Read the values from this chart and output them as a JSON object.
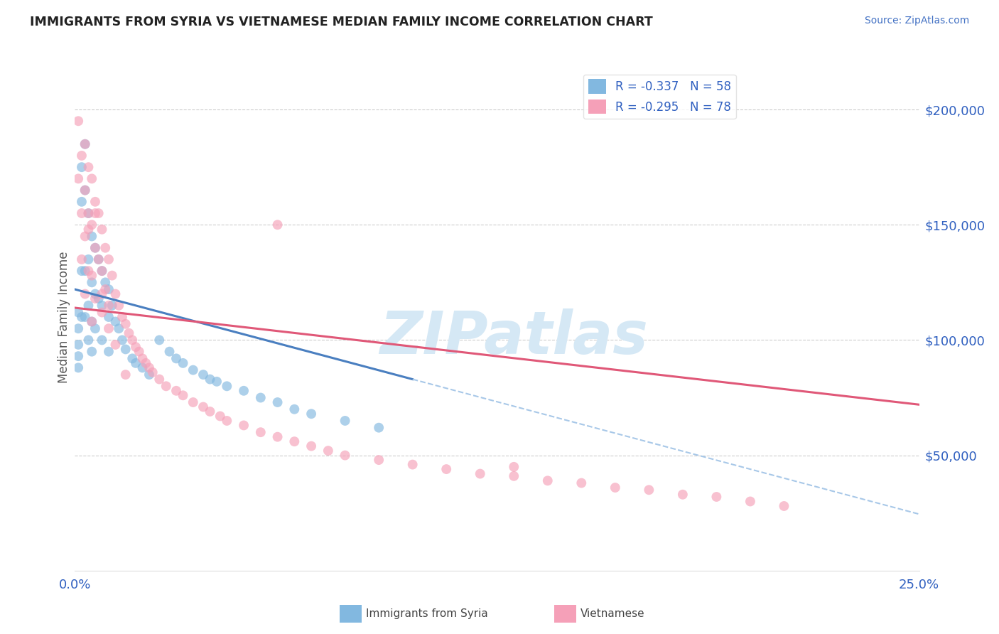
{
  "title": "IMMIGRANTS FROM SYRIA VS VIETNAMESE MEDIAN FAMILY INCOME CORRELATION CHART",
  "source": "Source: ZipAtlas.com",
  "xtick_left": "0.0%",
  "xtick_right": "25.0%",
  "ylabel": "Median Family Income",
  "ytick_labels": [
    "$50,000",
    "$100,000",
    "$150,000",
    "$200,000"
  ],
  "ytick_values": [
    50000,
    100000,
    150000,
    200000
  ],
  "xlim": [
    0.0,
    0.25
  ],
  "ylim": [
    0,
    220000
  ],
  "legend_syria": "R = -0.337   N = 58",
  "legend_vietnamese": "R = -0.295   N = 78",
  "syria_color": "#82b8e0",
  "vietnamese_color": "#f5a0b8",
  "syria_line_color": "#4a7fc0",
  "vietnamese_line_color": "#e05878",
  "dashed_line_color": "#a8c8e8",
  "watermark": "ZIPatlas",
  "watermark_color": "#d5e8f5",
  "bg_color": "#ffffff",
  "grid_color": "#cccccc",
  "title_color": "#222222",
  "axis_label_color": "#3060c0",
  "source_color": "#4472c4",
  "bottom_legend_label1": "Immigrants from Syria",
  "bottom_legend_label2": "Vietnamese",
  "syria_line_x0": 0.0,
  "syria_line_y0": 122000,
  "syria_line_x1": 0.1,
  "syria_line_y1": 83000,
  "viet_line_x0": 0.0,
  "viet_line_y0": 114000,
  "viet_line_x1": 0.25,
  "viet_line_y1": 72000,
  "syria_scatter_x": [
    0.001,
    0.001,
    0.001,
    0.001,
    0.001,
    0.002,
    0.002,
    0.002,
    0.002,
    0.003,
    0.003,
    0.003,
    0.003,
    0.004,
    0.004,
    0.004,
    0.004,
    0.005,
    0.005,
    0.005,
    0.005,
    0.006,
    0.006,
    0.006,
    0.007,
    0.007,
    0.008,
    0.008,
    0.008,
    0.009,
    0.01,
    0.01,
    0.01,
    0.011,
    0.012,
    0.013,
    0.014,
    0.015,
    0.017,
    0.018,
    0.02,
    0.022,
    0.025,
    0.028,
    0.03,
    0.032,
    0.035,
    0.038,
    0.04,
    0.042,
    0.045,
    0.05,
    0.055,
    0.06,
    0.065,
    0.07,
    0.08,
    0.09
  ],
  "syria_scatter_y": [
    112000,
    105000,
    98000,
    93000,
    88000,
    175000,
    160000,
    130000,
    110000,
    185000,
    165000,
    130000,
    110000,
    155000,
    135000,
    115000,
    100000,
    145000,
    125000,
    108000,
    95000,
    140000,
    120000,
    105000,
    135000,
    118000,
    130000,
    115000,
    100000,
    125000,
    122000,
    110000,
    95000,
    115000,
    108000,
    105000,
    100000,
    96000,
    92000,
    90000,
    88000,
    85000,
    100000,
    95000,
    92000,
    90000,
    87000,
    85000,
    83000,
    82000,
    80000,
    78000,
    75000,
    73000,
    70000,
    68000,
    65000,
    62000
  ],
  "vietnamese_scatter_x": [
    0.001,
    0.001,
    0.002,
    0.002,
    0.002,
    0.003,
    0.003,
    0.003,
    0.003,
    0.004,
    0.004,
    0.004,
    0.005,
    0.005,
    0.005,
    0.005,
    0.006,
    0.006,
    0.006,
    0.007,
    0.007,
    0.008,
    0.008,
    0.008,
    0.009,
    0.009,
    0.01,
    0.01,
    0.011,
    0.012,
    0.013,
    0.014,
    0.015,
    0.016,
    0.017,
    0.018,
    0.019,
    0.02,
    0.021,
    0.022,
    0.023,
    0.025,
    0.027,
    0.03,
    0.032,
    0.035,
    0.038,
    0.04,
    0.043,
    0.045,
    0.05,
    0.055,
    0.06,
    0.065,
    0.07,
    0.075,
    0.08,
    0.09,
    0.1,
    0.11,
    0.12,
    0.13,
    0.14,
    0.15,
    0.16,
    0.17,
    0.18,
    0.19,
    0.2,
    0.21,
    0.004,
    0.006,
    0.008,
    0.01,
    0.012,
    0.015,
    0.06,
    0.13
  ],
  "vietnamese_scatter_y": [
    195000,
    170000,
    180000,
    155000,
    135000,
    185000,
    165000,
    145000,
    120000,
    175000,
    155000,
    130000,
    170000,
    150000,
    128000,
    108000,
    160000,
    140000,
    118000,
    155000,
    135000,
    148000,
    130000,
    112000,
    140000,
    122000,
    135000,
    115000,
    128000,
    120000,
    115000,
    110000,
    107000,
    103000,
    100000,
    97000,
    95000,
    92000,
    90000,
    88000,
    86000,
    83000,
    80000,
    78000,
    76000,
    73000,
    71000,
    69000,
    67000,
    65000,
    63000,
    60000,
    58000,
    56000,
    54000,
    52000,
    50000,
    48000,
    46000,
    44000,
    42000,
    41000,
    39000,
    38000,
    36000,
    35000,
    33000,
    32000,
    30000,
    28000,
    148000,
    155000,
    120000,
    105000,
    98000,
    85000,
    150000,
    45000
  ]
}
